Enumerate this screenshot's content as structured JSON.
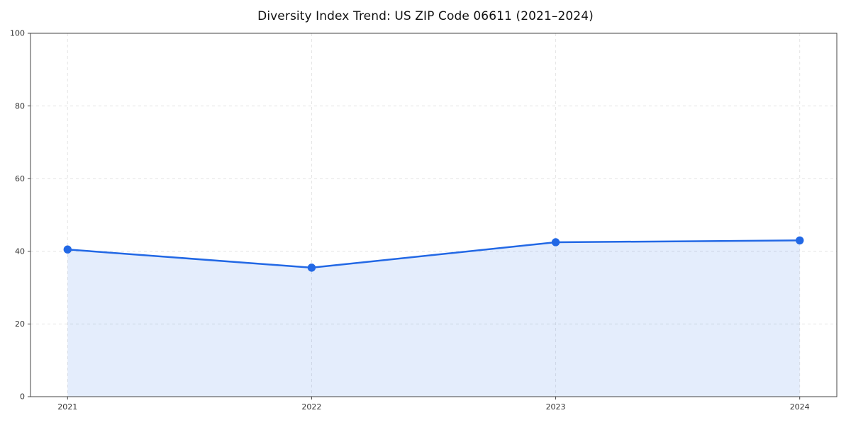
{
  "chart_data": {
    "type": "area",
    "title": "Diversity Index Trend: US ZIP Code 06611 (2021–2024)",
    "x": [
      "2021",
      "2022",
      "2023",
      "2024"
    ],
    "series": [
      {
        "name": "Diversity Index",
        "values": [
          40.5,
          35.5,
          42.5,
          43.0
        ]
      }
    ],
    "xlabel": "",
    "ylabel": "",
    "ylim": [
      0,
      100
    ],
    "yticks": [
      0,
      20,
      40,
      60,
      80,
      100
    ],
    "grid": "dashed",
    "legend": "none",
    "line_color": "#2268e5",
    "marker_color": "#2268e5",
    "fill_color": "#2268e5",
    "fill_opacity": 0.12,
    "grid_color": "#e4e4e4",
    "axis_color": "#444444",
    "tick_label_color": "#333333"
  }
}
